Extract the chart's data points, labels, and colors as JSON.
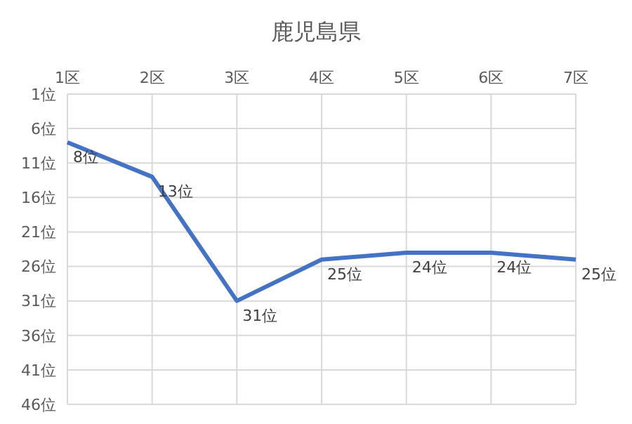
{
  "chart_data": {
    "type": "line",
    "title": "鹿児島県",
    "categories": [
      "1区",
      "2区",
      "3区",
      "4区",
      "5区",
      "6区",
      "7区"
    ],
    "series": [
      {
        "color": "#4472c4",
        "values": [
          8,
          13,
          31,
          25,
          24,
          24,
          25
        ],
        "value_labels": [
          "8位",
          "13位",
          "31位",
          "25位",
          "24位",
          "24位",
          "25位"
        ]
      }
    ],
    "ylim": [
      46,
      1
    ],
    "yticks": [
      {
        "value": 1,
        "label": "1位"
      },
      {
        "value": 6,
        "label": "6位"
      },
      {
        "value": 11,
        "label": "11位"
      },
      {
        "value": 16,
        "label": "16位"
      },
      {
        "value": 21,
        "label": "21位"
      },
      {
        "value": 26,
        "label": "26位"
      },
      {
        "value": 31,
        "label": "31位"
      },
      {
        "value": 36,
        "label": "36位"
      },
      {
        "value": 41,
        "label": "41位"
      },
      {
        "value": 46,
        "label": "46位"
      }
    ],
    "grid": true,
    "legend": false,
    "marker": "none",
    "line_style": "solid"
  }
}
